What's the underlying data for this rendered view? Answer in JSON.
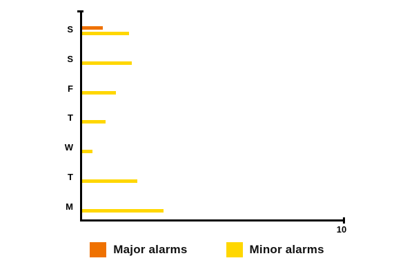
{
  "chart_data": {
    "type": "bar",
    "orientation": "horizontal",
    "title": "",
    "categories": [
      "S",
      "S",
      "F",
      "T",
      "W",
      "T",
      "M"
    ],
    "series": [
      {
        "name": "Major alarms",
        "color": "#EF7100",
        "values": [
          0.8,
          0,
          0,
          0,
          0,
          0,
          0
        ]
      },
      {
        "name": "Minor alarms",
        "color": "#FFD700",
        "values": [
          1.8,
          1.9,
          1.3,
          0.9,
          0.4,
          2.1,
          3.1
        ]
      }
    ],
    "xlabel": "",
    "ylabel": "",
    "xlim": [
      0,
      10
    ],
    "x_max_tick_label": "10",
    "grid": false,
    "legend_position": "bottom",
    "axis_color": "#000000",
    "label_color": "#000000"
  }
}
